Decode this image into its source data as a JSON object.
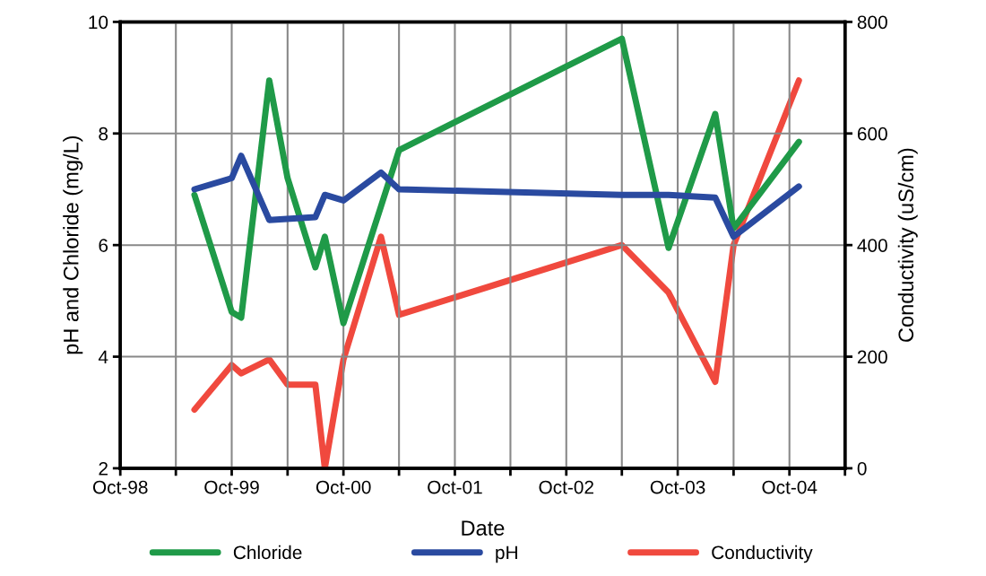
{
  "chart_data": {
    "type": "line",
    "xlabel": "Date",
    "ylabel": "pH and Chloride (mg/L)",
    "y2label": "Conductivity (uS/cm)",
    "xlim": [
      "1998-10",
      "2005-04"
    ],
    "xticks": [
      {
        "value": "1998-10",
        "label": "Oct-98"
      },
      {
        "value": "1999-04",
        "label": null
      },
      {
        "value": "1999-10",
        "label": "Oct-99"
      },
      {
        "value": "2000-04",
        "label": null
      },
      {
        "value": "2000-10",
        "label": "Oct-00"
      },
      {
        "value": "2001-04",
        "label": null
      },
      {
        "value": "2001-10",
        "label": "Oct-01"
      },
      {
        "value": "2002-04",
        "label": null
      },
      {
        "value": "2002-10",
        "label": "Oct-02"
      },
      {
        "value": "2003-04",
        "label": null
      },
      {
        "value": "2003-10",
        "label": "Oct-03"
      },
      {
        "value": "2004-04",
        "label": null
      },
      {
        "value": "2004-10",
        "label": "Oct-04"
      },
      {
        "value": "2005-04",
        "label": null
      }
    ],
    "ylim": [
      2,
      10
    ],
    "yticks": [
      2,
      4,
      6,
      8,
      10
    ],
    "y2lim": [
      0,
      800
    ],
    "y2ticks": [
      0,
      200,
      400,
      600,
      800
    ],
    "grid": true,
    "legend": "bottom",
    "marker": "none",
    "line_style": "solid",
    "series": [
      {
        "name": "Chloride",
        "color": "#1f9a48",
        "x": [
          "1999-06",
          "1999-10",
          "1999-11",
          "2000-02",
          "2000-04",
          "2000-07",
          "2000-08",
          "2000-10",
          "2001-04",
          "2003-04",
          "2003-09",
          "2004-02",
          "2004-04",
          "2004-11"
        ],
        "values": [
          6.9,
          4.8,
          4.7,
          8.95,
          7.2,
          5.6,
          6.15,
          4.6,
          7.7,
          9.7,
          5.95,
          8.35,
          6.3,
          7.85
        ]
      },
      {
        "name": "pH",
        "color": "#2a4aa0",
        "x": [
          "1999-06",
          "1999-10",
          "1999-11",
          "2000-02",
          "2000-07",
          "2000-08",
          "2000-10",
          "2001-02",
          "2001-04",
          "2003-04",
          "2003-09",
          "2004-02",
          "2004-04",
          "2004-11"
        ],
        "values": [
          7.0,
          7.2,
          7.6,
          6.45,
          6.5,
          6.9,
          6.8,
          7.3,
          7.0,
          6.9,
          6.9,
          6.85,
          6.15,
          7.05
        ]
      },
      {
        "name": "Conductivity",
        "color": "#f0493e",
        "axis": "y2",
        "x": [
          "1999-06",
          "1999-10",
          "1999-11",
          "2000-02",
          "2000-04",
          "2000-07",
          "2000-08",
          "2000-10",
          "2001-02",
          "2001-04",
          "2003-04",
          "2003-09",
          "2004-02",
          "2004-04",
          "2004-11"
        ],
        "values": [
          105,
          185,
          170,
          195,
          150,
          150,
          0,
          195,
          415,
          275,
          400,
          315,
          155,
          400,
          695
        ]
      }
    ]
  }
}
